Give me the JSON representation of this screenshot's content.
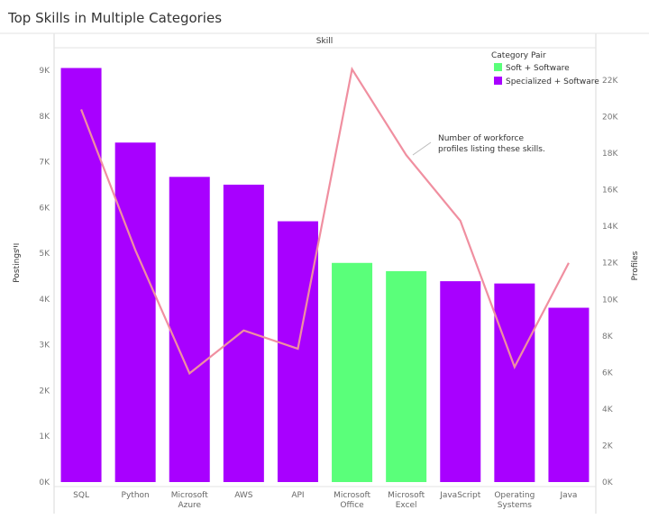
{
  "chart_data": {
    "type": "bar",
    "title": "Top Skills in Multiple Categories",
    "header": "Skill",
    "ylabel": "Postings",
    "y2label": "Profiles",
    "ylim": [
      0,
      9000
    ],
    "y2lim": [
      0,
      23000
    ],
    "yticks": [
      "0K",
      "1K",
      "2K",
      "3K",
      "4K",
      "5K",
      "6K",
      "7K",
      "8K",
      "9K"
    ],
    "y2ticks": [
      "0K",
      "2K",
      "4K",
      "6K",
      "8K",
      "10K",
      "12K",
      "14K",
      "16K",
      "18K",
      "20K",
      "22K"
    ],
    "categories": [
      [
        "SQL"
      ],
      [
        "Python"
      ],
      [
        "Microsoft",
        "Azure"
      ],
      [
        "AWS"
      ],
      [
        "API"
      ],
      [
        "Microsoft",
        "Office"
      ],
      [
        "Microsoft",
        "Excel"
      ],
      [
        "JavaScript"
      ],
      [
        "Operating",
        "Systems"
      ],
      [
        "Java"
      ]
    ],
    "legend_title": "Category Pair",
    "legend": [
      {
        "name": "Soft + Software",
        "color": "#5aff7a"
      },
      {
        "name": "Specialized + Software",
        "color": "#a800ff"
      }
    ],
    "series": [
      {
        "name": "Postings",
        "kind": "bar",
        "axis": "left",
        "values": [
          9050,
          7420,
          6670,
          6500,
          5700,
          4790,
          4610,
          4390,
          4340,
          3810
        ],
        "groups": [
          1,
          1,
          1,
          1,
          1,
          0,
          0,
          1,
          1,
          1
        ]
      },
      {
        "name": "Profiles",
        "kind": "line",
        "axis": "right",
        "color": "#f08fa0",
        "values": [
          20400,
          12700,
          5950,
          8300,
          7300,
          22600,
          17900,
          14300,
          6300,
          12000
        ]
      }
    ],
    "annotation": [
      "Number of workforce",
      "profiles listing these skills."
    ]
  }
}
